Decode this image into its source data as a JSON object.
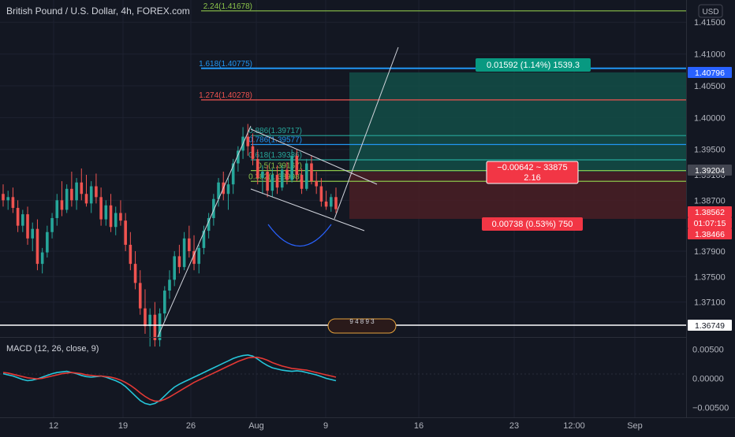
{
  "header": {
    "title": "British Pound / U.S. Dollar, 4h, FOREX.com",
    "currency_button": "USD"
  },
  "colors": {
    "background": "#131722",
    "grid": "#1e2230",
    "text": "#b2b5be",
    "up": "#26a69a",
    "down": "#ef5350",
    "macd": "#26c6da",
    "signal": "#e53935",
    "fib_green": "#8bc34a",
    "fib_blue": "#2196f3",
    "fib_red": "#ef5350",
    "fib_teal": "#26a69a",
    "profit_fill": "#134e46",
    "loss_fill": "#4a1e24"
  },
  "price_axis": {
    "ticks": [
      "1.41500",
      "1.41000",
      "1.40500",
      "1.40000",
      "1.39500",
      "1.39100",
      "1.38700",
      "1.37900",
      "1.37500",
      "1.37100"
    ],
    "badges": [
      {
        "label": "1.40796",
        "kind": "blue"
      },
      {
        "label": "1.39204",
        "kind": "gray"
      },
      {
        "label": "1.38562",
        "kind": "red"
      },
      {
        "label": "01:07:15",
        "kind": "red"
      },
      {
        "label": "1.38466",
        "kind": "red"
      },
      {
        "label": "1.36749",
        "kind": "white"
      }
    ]
  },
  "time_axis": {
    "labels": [
      "12",
      "19",
      "26",
      "Aug",
      "9",
      "16",
      "23",
      "12:00",
      "Sep"
    ]
  },
  "fib_levels": [
    {
      "label": "2.24(1.41678)",
      "color": "green"
    },
    {
      "label": "1.618(1.40775)",
      "color": "blue"
    },
    {
      "label": "1.274(1.40278)",
      "color": "red"
    },
    {
      "label": "0.886(1.39717)",
      "color": "teal"
    },
    {
      "label": "0.786(1.39577)",
      "color": "blue"
    },
    {
      "label": "0.618(1.39336)",
      "color": "teal"
    },
    {
      "label": "0.5(1.39167)",
      "color": "green"
    },
    {
      "label": "0.382(1.38998)",
      "color": "green"
    }
  ],
  "position_tool": {
    "profit_label": "0.01592 (1.14%) 1539.3",
    "entry_label_line1": "−0.00642 ~ 33875",
    "entry_label_line2": "2.16",
    "loss_label": "0.00738 (0.53%) 750"
  },
  "events_label": "9 4 8 9 3",
  "macd": {
    "label": "MACD (12, 26, close, 9)",
    "ticks": [
      "0.00500",
      "0.00000",
      "−0.00500"
    ]
  },
  "chart_data": {
    "type": "candlestick",
    "title": "British Pound / U.S. Dollar, 4h, FOREX.com",
    "ylim": [
      1.3655,
      1.4175
    ],
    "x_labels": [
      "12",
      "19",
      "26",
      "Aug",
      "9",
      "16",
      "23",
      "12:00",
      "Sep"
    ],
    "horizontal_lines": [
      1.41678,
      1.40775,
      1.40278,
      1.39717,
      1.39577,
      1.39336,
      1.39167,
      1.38998,
      1.36749
    ],
    "last_price": 1.38562,
    "candles": [
      [
        1.388,
        1.3895,
        1.386,
        1.387
      ],
      [
        1.387,
        1.3885,
        1.3855,
        1.3875
      ],
      [
        1.3875,
        1.389,
        1.385,
        1.3858
      ],
      [
        1.3858,
        1.387,
        1.382,
        1.383
      ],
      [
        1.383,
        1.3855,
        1.382,
        1.3848
      ],
      [
        1.3848,
        1.386,
        1.38,
        1.381
      ],
      [
        1.381,
        1.3835,
        1.379,
        1.3825
      ],
      [
        1.3825,
        1.384,
        1.376,
        1.377
      ],
      [
        1.377,
        1.3795,
        1.3755,
        1.3788
      ],
      [
        1.3788,
        1.383,
        1.378,
        1.382
      ],
      [
        1.382,
        1.385,
        1.381,
        1.3842
      ],
      [
        1.3842,
        1.388,
        1.383,
        1.387
      ],
      [
        1.387,
        1.39,
        1.3845,
        1.3855
      ],
      [
        1.3855,
        1.3895,
        1.385,
        1.3888
      ],
      [
        1.3888,
        1.3915,
        1.386,
        1.387
      ],
      [
        1.387,
        1.3905,
        1.3855,
        1.3898
      ],
      [
        1.3898,
        1.392,
        1.387,
        1.388
      ],
      [
        1.388,
        1.391,
        1.386,
        1.3865
      ],
      [
        1.3865,
        1.39,
        1.385,
        1.3892
      ],
      [
        1.3892,
        1.3912,
        1.3865,
        1.3875
      ],
      [
        1.3875,
        1.389,
        1.383,
        1.384
      ],
      [
        1.384,
        1.387,
        1.383,
        1.3862
      ],
      [
        1.3862,
        1.388,
        1.382,
        1.3828
      ],
      [
        1.3828,
        1.386,
        1.3815,
        1.385
      ],
      [
        1.385,
        1.387,
        1.383,
        1.3838
      ],
      [
        1.3838,
        1.385,
        1.379,
        1.38
      ],
      [
        1.38,
        1.382,
        1.376,
        1.377
      ],
      [
        1.377,
        1.379,
        1.373,
        1.374
      ],
      [
        1.374,
        1.376,
        1.369,
        1.37
      ],
      [
        1.37,
        1.373,
        1.366,
        1.3672
      ],
      [
        1.3672,
        1.37,
        1.364,
        1.369
      ],
      [
        1.369,
        1.371,
        1.364,
        1.365
      ],
      [
        1.365,
        1.37,
        1.364,
        1.3692
      ],
      [
        1.3692,
        1.3735,
        1.368,
        1.3728
      ],
      [
        1.3728,
        1.376,
        1.3715,
        1.3745
      ],
      [
        1.3745,
        1.379,
        1.3735,
        1.3782
      ],
      [
        1.3782,
        1.38,
        1.3755,
        1.3765
      ],
      [
        1.3765,
        1.382,
        1.376,
        1.381
      ],
      [
        1.381,
        1.383,
        1.378,
        1.379
      ],
      [
        1.379,
        1.3815,
        1.376,
        1.377
      ],
      [
        1.377,
        1.38,
        1.3755,
        1.3795
      ],
      [
        1.3795,
        1.383,
        1.3785,
        1.3822
      ],
      [
        1.3822,
        1.385,
        1.381,
        1.3842
      ],
      [
        1.3842,
        1.388,
        1.383,
        1.3872
      ],
      [
        1.3872,
        1.3905,
        1.386,
        1.3898
      ],
      [
        1.3898,
        1.3915,
        1.387,
        1.388
      ],
      [
        1.388,
        1.3905,
        1.3855,
        1.3895
      ],
      [
        1.3895,
        1.3935,
        1.388,
        1.3928
      ],
      [
        1.3928,
        1.3955,
        1.3915,
        1.3948
      ],
      [
        1.3948,
        1.3985,
        1.3935,
        1.397
      ],
      [
        1.397,
        1.399,
        1.394,
        1.3955
      ],
      [
        1.3955,
        1.3975,
        1.3925,
        1.3935
      ],
      [
        1.3935,
        1.395,
        1.3895,
        1.3905
      ],
      [
        1.3905,
        1.3925,
        1.388,
        1.3915
      ],
      [
        1.3915,
        1.3925,
        1.3875,
        1.3885
      ],
      [
        1.3885,
        1.392,
        1.3875,
        1.391
      ],
      [
        1.391,
        1.3925,
        1.388,
        1.389
      ],
      [
        1.389,
        1.3925,
        1.3885,
        1.3918
      ],
      [
        1.3918,
        1.393,
        1.3895,
        1.3902
      ],
      [
        1.3902,
        1.395,
        1.3898,
        1.394
      ],
      [
        1.394,
        1.395,
        1.39,
        1.391
      ],
      [
        1.391,
        1.392,
        1.388,
        1.3888
      ],
      [
        1.3888,
        1.3935,
        1.3885,
        1.3928
      ],
      [
        1.3928,
        1.394,
        1.3895,
        1.39
      ],
      [
        1.39,
        1.3915,
        1.388,
        1.3892
      ],
      [
        1.3892,
        1.3905,
        1.386,
        1.3868
      ],
      [
        1.3868,
        1.3885,
        1.3855,
        1.386
      ],
      [
        1.386,
        1.388,
        1.3852,
        1.3875
      ],
      [
        1.3875,
        1.389,
        1.385,
        1.3856
      ]
    ],
    "macd_series": [
      {
        "name": "MACD",
        "values": [
          0.0008,
          0.0006,
          0.0004,
          0.0001,
          -0.0002,
          -0.0004,
          -0.0003,
          -0.0001,
          0.0002,
          0.0005,
          0.0008,
          0.001,
          0.0011,
          0.0012,
          0.001,
          0.0008,
          0.0005,
          0.0003,
          0.0002,
          0.0003,
          0.0004,
          0.0002,
          -0.0001,
          -0.0004,
          -0.0008,
          -0.0014,
          -0.0022,
          -0.003,
          -0.0038,
          -0.0043,
          -0.0045,
          -0.0043,
          -0.0038,
          -0.003,
          -0.0022,
          -0.0015,
          -0.001,
          -0.0006,
          -0.0002,
          0.0002,
          0.0006,
          0.001,
          0.0014,
          0.0018,
          0.0022,
          0.0026,
          0.003,
          0.0034,
          0.0037,
          0.0039,
          0.004,
          0.0038,
          0.0033,
          0.0027,
          0.0022,
          0.0018,
          0.0016,
          0.0014,
          0.0013,
          0.0012,
          0.0013,
          0.0012,
          0.001,
          0.0008,
          0.0006,
          0.0003,
          0.0,
          -0.0002,
          -0.0004
        ]
      },
      {
        "name": "Signal",
        "values": [
          0.001,
          0.0009,
          0.0007,
          0.0005,
          0.0003,
          0.0001,
          0.0,
          -0.0001,
          0.0,
          0.0002,
          0.0004,
          0.0006,
          0.0008,
          0.0009,
          0.001,
          0.0009,
          0.0008,
          0.0006,
          0.0005,
          0.0004,
          0.0004,
          0.0003,
          0.0002,
          0.0,
          -0.0003,
          -0.0007,
          -0.0012,
          -0.0018,
          -0.0025,
          -0.0031,
          -0.0036,
          -0.0039,
          -0.0039,
          -0.0036,
          -0.0032,
          -0.0027,
          -0.0022,
          -0.0017,
          -0.0012,
          -0.0007,
          -0.0003,
          0.0001,
          0.0005,
          0.0009,
          0.0013,
          0.0017,
          0.0021,
          0.0025,
          0.0029,
          0.0032,
          0.0035,
          0.0036,
          0.0036,
          0.0034,
          0.0031,
          0.0027,
          0.0024,
          0.0021,
          0.0019,
          0.0017,
          0.0016,
          0.0015,
          0.0014,
          0.0012,
          0.001,
          0.0008,
          0.0006,
          0.0004,
          0.0002
        ]
      }
    ],
    "macd_ylim": [
      -0.006,
      0.006
    ]
  }
}
